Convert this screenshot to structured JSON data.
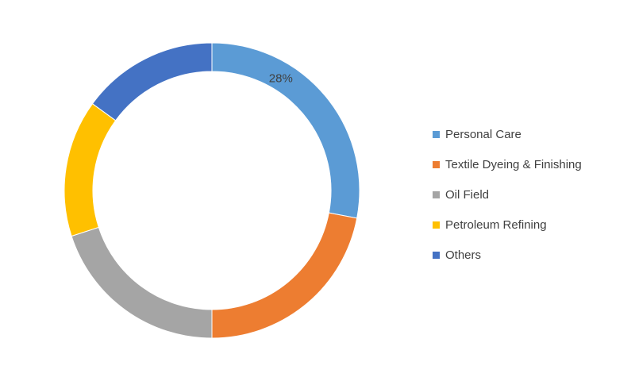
{
  "chart_data": {
    "type": "pie",
    "variant": "donut",
    "categories": [
      "Personal Care",
      "Textile Dyeing & Finishing",
      "Oil Field",
      "Petroleum Refining",
      "Others"
    ],
    "values": [
      28,
      22,
      20,
      15,
      15
    ],
    "data_labels": [
      "28%",
      "",
      "",
      "",
      ""
    ],
    "colors": [
      "#5B9BD5",
      "#ED7D31",
      "#A5A5A5",
      "#FFC000",
      "#4472C4"
    ],
    "start_angle_deg": 0,
    "direction": "clockwise",
    "legend_position": "right"
  }
}
